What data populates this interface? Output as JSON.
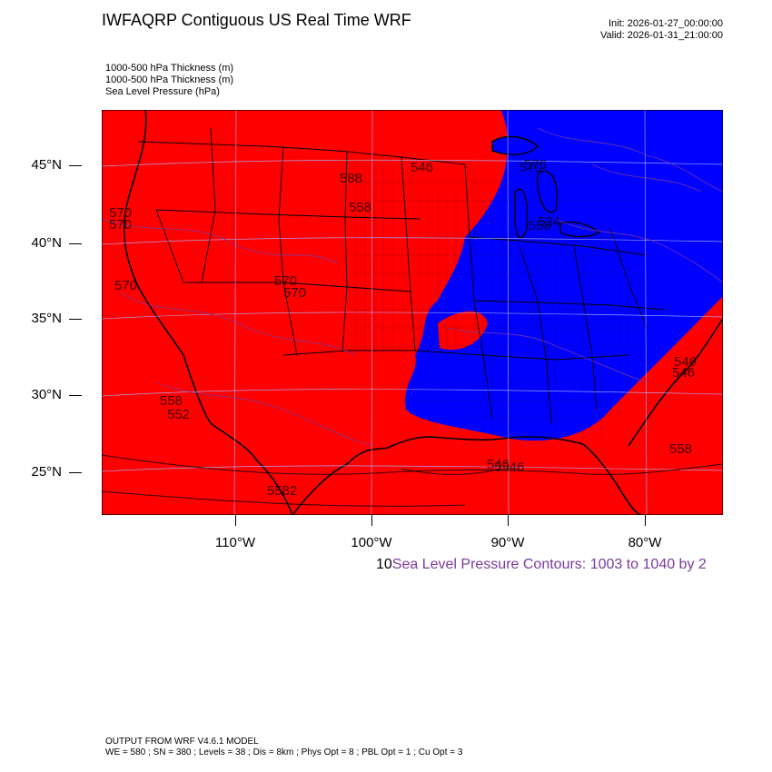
{
  "header": {
    "title": "IWFAQRP Contiguous US Real Time WRF",
    "init": "Init: 2026-01-27_00:00:00",
    "valid": "Valid: 2026-01-31_21:00:00"
  },
  "layers": [
    "1000-500 hPa Thickness   (m)",
    "1000-500 hPa Thickness   (m)",
    "Sea Level Pressure   (hPa)"
  ],
  "axes": {
    "lat_labels": [
      "45°N",
      "40°N",
      "35°N",
      "30°N",
      "25°N"
    ],
    "lon_labels": [
      "110°W",
      "100°W",
      "90°W",
      "80°W"
    ]
  },
  "contour_info": {
    "prefix": "10",
    "text": "Sea Level Pressure Contours: 1003 to 1040 by 2"
  },
  "contour_labels": [
    "570",
    "570",
    "570",
    "588",
    "546",
    "570",
    "558",
    "576",
    "558",
    "534",
    "570",
    "570",
    "558",
    "552",
    "546",
    "5582",
    "5546",
    "546",
    "546",
    "558"
  ],
  "colors": {
    "warm_fill": "#ff0000",
    "cold_fill": "#0000ff",
    "pressure_contour": "#7a3a9e"
  },
  "footer": {
    "line1": "OUTPUT FROM WRF V4.6.1 MODEL",
    "line2": "WE = 580 ; SN = 380 ; Levels = 38 ; Dis = 8km ; Phys Opt = 8 ; PBL Opt = 1 ; Cu Opt = 3"
  }
}
